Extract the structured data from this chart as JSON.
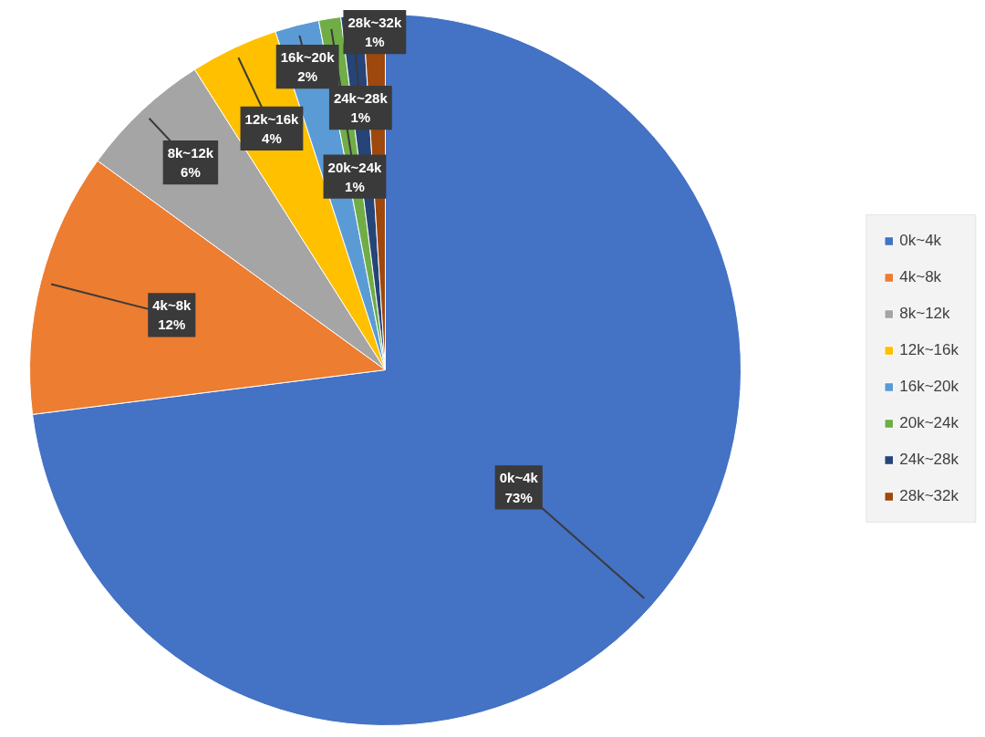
{
  "chart_data": {
    "type": "pie",
    "categories": [
      "0k~4k",
      "4k~8k",
      "8k~12k",
      "12k~16k",
      "16k~20k",
      "20k~24k",
      "24k~28k",
      "28k~32k"
    ],
    "values": [
      73,
      12,
      6,
      4,
      2,
      1,
      1,
      1
    ],
    "colors": [
      "#4472c4",
      "#ed7d31",
      "#a5a5a5",
      "#ffc000",
      "#5b9bd5",
      "#70ad47",
      "#264478",
      "#9e480e"
    ],
    "value_labels": [
      "73%",
      "12%",
      "6%",
      "4%",
      "2%",
      "1%",
      "1%",
      "1%"
    ],
    "legend": "right"
  }
}
